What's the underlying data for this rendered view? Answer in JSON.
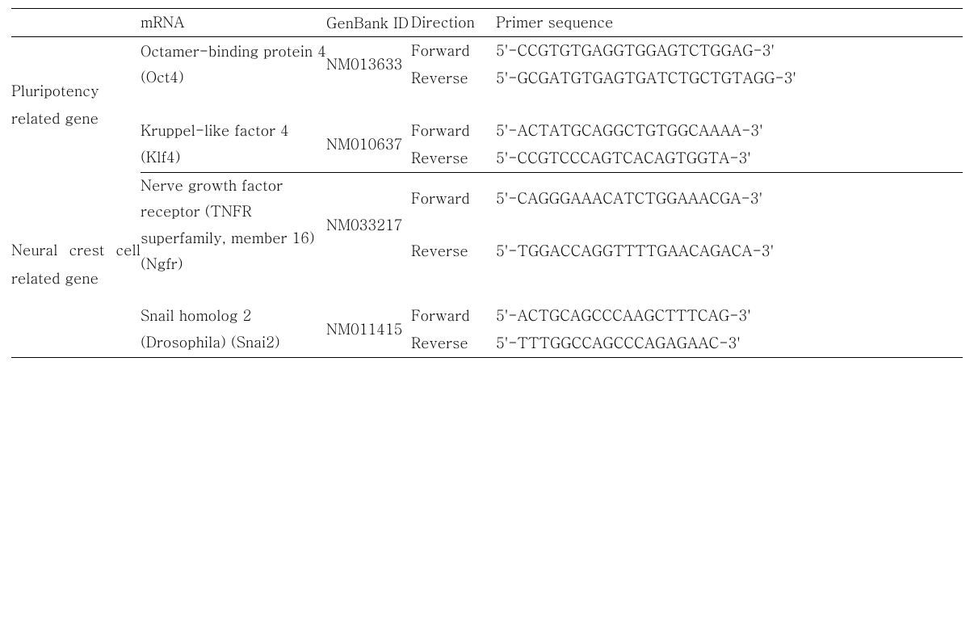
{
  "table": {
    "type": "table",
    "border_color": "#000000",
    "background_color": "#ffffff",
    "text_color": "#000000",
    "font_size_pt": 14,
    "headers": {
      "category": "",
      "mrna": "mRNA",
      "genbank": "GenBank ID",
      "direction": "Direction",
      "primer": "Primer sequence"
    },
    "groups": [
      {
        "category": "Pluripotency related gene",
        "genes": [
          {
            "mrna": "Octamer-binding protein 4 (Oct4)",
            "genbank": "NM013633",
            "primers": [
              {
                "direction": "Forward",
                "sequence": "5'-CCGTGTGAGGTGGAGTCTGGAG-3'"
              },
              {
                "direction": "Reverse",
                "sequence": "5'-GCGATGTGAGTGATCTGCTGTAGG-3'"
              }
            ]
          },
          {
            "mrna": "Kruppel-like factor 4 (Klf4)",
            "genbank": "NM010637",
            "primers": [
              {
                "direction": "Forward",
                "sequence": "5'-ACTATGCAGGCTGTGGCAAAA-3'"
              },
              {
                "direction": "Reverse",
                "sequence": "5'-CCGTCCCAGTCACAGTGGTA-3'"
              }
            ]
          }
        ]
      },
      {
        "category": "Neural crest cell related gene",
        "genes": [
          {
            "mrna": "Nerve growth factor receptor (TNFR superfamily, member 16) (Ngfr)",
            "genbank": "NM033217",
            "primers": [
              {
                "direction": "Forward",
                "sequence": "5'-CAGGGAAACATCTGGAAACGA-3'"
              },
              {
                "direction": "Reverse",
                "sequence": "5'-TGGACCAGGTTTTGAACAGACA-3'"
              }
            ]
          },
          {
            "mrna": "Snail homolog 2 (Drosophila) (Snai2)",
            "genbank": "NM011415",
            "primers": [
              {
                "direction": "Forward",
                "sequence": "5'-ACTGCAGCCCAAGCTTTCAG-3'"
              },
              {
                "direction": "Reverse",
                "sequence": "5'-TTTGGCCAGCCCAGAGAAC-3'"
              }
            ]
          }
        ]
      }
    ]
  }
}
